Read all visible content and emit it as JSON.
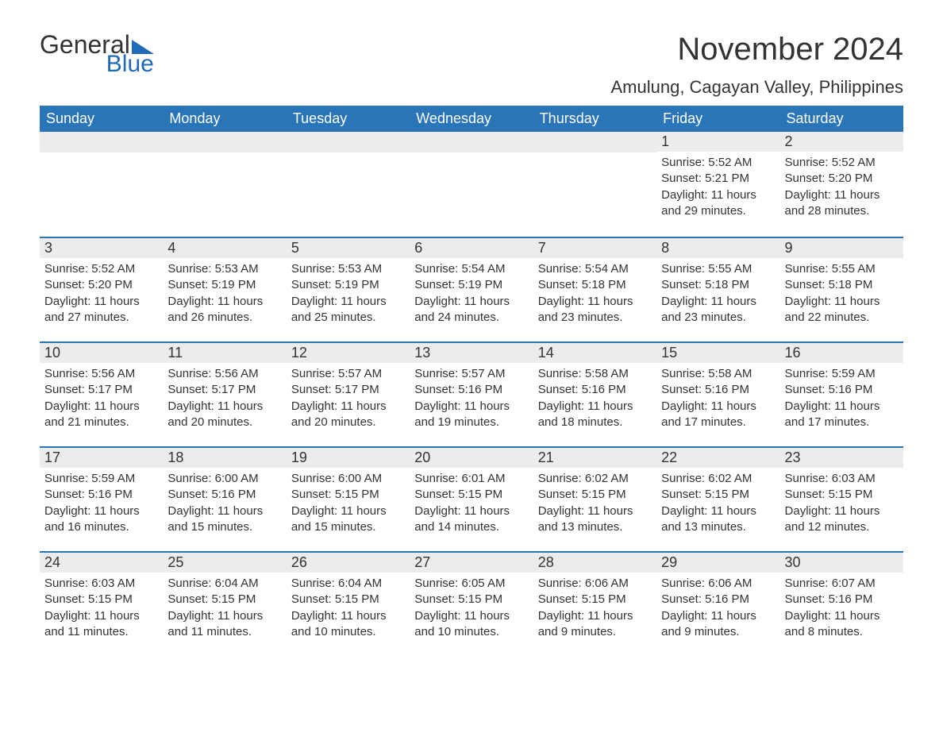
{
  "logo": {
    "general": "General",
    "blue": "Blue"
  },
  "title": "November 2024",
  "location": "Amulung, Cagayan Valley, Philippines",
  "colors": {
    "header_bg": "#2a74b8",
    "header_text": "#ffffff",
    "daybar_bg": "#ececec",
    "border": "#2a74b8",
    "text": "#333333",
    "logo_blue": "#1f6bb5"
  },
  "day_headers": [
    "Sunday",
    "Monday",
    "Tuesday",
    "Wednesday",
    "Thursday",
    "Friday",
    "Saturday"
  ],
  "weeks": [
    [
      {
        "blank": true
      },
      {
        "blank": true
      },
      {
        "blank": true
      },
      {
        "blank": true
      },
      {
        "blank": true
      },
      {
        "n": "1",
        "sunrise": "Sunrise: 5:52 AM",
        "sunset": "Sunset: 5:21 PM",
        "day1": "Daylight: 11 hours",
        "day2": "and 29 minutes."
      },
      {
        "n": "2",
        "sunrise": "Sunrise: 5:52 AM",
        "sunset": "Sunset: 5:20 PM",
        "day1": "Daylight: 11 hours",
        "day2": "and 28 minutes."
      }
    ],
    [
      {
        "n": "3",
        "sunrise": "Sunrise: 5:52 AM",
        "sunset": "Sunset: 5:20 PM",
        "day1": "Daylight: 11 hours",
        "day2": "and 27 minutes."
      },
      {
        "n": "4",
        "sunrise": "Sunrise: 5:53 AM",
        "sunset": "Sunset: 5:19 PM",
        "day1": "Daylight: 11 hours",
        "day2": "and 26 minutes."
      },
      {
        "n": "5",
        "sunrise": "Sunrise: 5:53 AM",
        "sunset": "Sunset: 5:19 PM",
        "day1": "Daylight: 11 hours",
        "day2": "and 25 minutes."
      },
      {
        "n": "6",
        "sunrise": "Sunrise: 5:54 AM",
        "sunset": "Sunset: 5:19 PM",
        "day1": "Daylight: 11 hours",
        "day2": "and 24 minutes."
      },
      {
        "n": "7",
        "sunrise": "Sunrise: 5:54 AM",
        "sunset": "Sunset: 5:18 PM",
        "day1": "Daylight: 11 hours",
        "day2": "and 23 minutes."
      },
      {
        "n": "8",
        "sunrise": "Sunrise: 5:55 AM",
        "sunset": "Sunset: 5:18 PM",
        "day1": "Daylight: 11 hours",
        "day2": "and 23 minutes."
      },
      {
        "n": "9",
        "sunrise": "Sunrise: 5:55 AM",
        "sunset": "Sunset: 5:18 PM",
        "day1": "Daylight: 11 hours",
        "day2": "and 22 minutes."
      }
    ],
    [
      {
        "n": "10",
        "sunrise": "Sunrise: 5:56 AM",
        "sunset": "Sunset: 5:17 PM",
        "day1": "Daylight: 11 hours",
        "day2": "and 21 minutes."
      },
      {
        "n": "11",
        "sunrise": "Sunrise: 5:56 AM",
        "sunset": "Sunset: 5:17 PM",
        "day1": "Daylight: 11 hours",
        "day2": "and 20 minutes."
      },
      {
        "n": "12",
        "sunrise": "Sunrise: 5:57 AM",
        "sunset": "Sunset: 5:17 PM",
        "day1": "Daylight: 11 hours",
        "day2": "and 20 minutes."
      },
      {
        "n": "13",
        "sunrise": "Sunrise: 5:57 AM",
        "sunset": "Sunset: 5:16 PM",
        "day1": "Daylight: 11 hours",
        "day2": "and 19 minutes."
      },
      {
        "n": "14",
        "sunrise": "Sunrise: 5:58 AM",
        "sunset": "Sunset: 5:16 PM",
        "day1": "Daylight: 11 hours",
        "day2": "and 18 minutes."
      },
      {
        "n": "15",
        "sunrise": "Sunrise: 5:58 AM",
        "sunset": "Sunset: 5:16 PM",
        "day1": "Daylight: 11 hours",
        "day2": "and 17 minutes."
      },
      {
        "n": "16",
        "sunrise": "Sunrise: 5:59 AM",
        "sunset": "Sunset: 5:16 PM",
        "day1": "Daylight: 11 hours",
        "day2": "and 17 minutes."
      }
    ],
    [
      {
        "n": "17",
        "sunrise": "Sunrise: 5:59 AM",
        "sunset": "Sunset: 5:16 PM",
        "day1": "Daylight: 11 hours",
        "day2": "and 16 minutes."
      },
      {
        "n": "18",
        "sunrise": "Sunrise: 6:00 AM",
        "sunset": "Sunset: 5:16 PM",
        "day1": "Daylight: 11 hours",
        "day2": "and 15 minutes."
      },
      {
        "n": "19",
        "sunrise": "Sunrise: 6:00 AM",
        "sunset": "Sunset: 5:15 PM",
        "day1": "Daylight: 11 hours",
        "day2": "and 15 minutes."
      },
      {
        "n": "20",
        "sunrise": "Sunrise: 6:01 AM",
        "sunset": "Sunset: 5:15 PM",
        "day1": "Daylight: 11 hours",
        "day2": "and 14 minutes."
      },
      {
        "n": "21",
        "sunrise": "Sunrise: 6:02 AM",
        "sunset": "Sunset: 5:15 PM",
        "day1": "Daylight: 11 hours",
        "day2": "and 13 minutes."
      },
      {
        "n": "22",
        "sunrise": "Sunrise: 6:02 AM",
        "sunset": "Sunset: 5:15 PM",
        "day1": "Daylight: 11 hours",
        "day2": "and 13 minutes."
      },
      {
        "n": "23",
        "sunrise": "Sunrise: 6:03 AM",
        "sunset": "Sunset: 5:15 PM",
        "day1": "Daylight: 11 hours",
        "day2": "and 12 minutes."
      }
    ],
    [
      {
        "n": "24",
        "sunrise": "Sunrise: 6:03 AM",
        "sunset": "Sunset: 5:15 PM",
        "day1": "Daylight: 11 hours",
        "day2": "and 11 minutes."
      },
      {
        "n": "25",
        "sunrise": "Sunrise: 6:04 AM",
        "sunset": "Sunset: 5:15 PM",
        "day1": "Daylight: 11 hours",
        "day2": "and 11 minutes."
      },
      {
        "n": "26",
        "sunrise": "Sunrise: 6:04 AM",
        "sunset": "Sunset: 5:15 PM",
        "day1": "Daylight: 11 hours",
        "day2": "and 10 minutes."
      },
      {
        "n": "27",
        "sunrise": "Sunrise: 6:05 AM",
        "sunset": "Sunset: 5:15 PM",
        "day1": "Daylight: 11 hours",
        "day2": "and 10 minutes."
      },
      {
        "n": "28",
        "sunrise": "Sunrise: 6:06 AM",
        "sunset": "Sunset: 5:15 PM",
        "day1": "Daylight: 11 hours",
        "day2": "and 9 minutes."
      },
      {
        "n": "29",
        "sunrise": "Sunrise: 6:06 AM",
        "sunset": "Sunset: 5:16 PM",
        "day1": "Daylight: 11 hours",
        "day2": "and 9 minutes."
      },
      {
        "n": "30",
        "sunrise": "Sunrise: 6:07 AM",
        "sunset": "Sunset: 5:16 PM",
        "day1": "Daylight: 11 hours",
        "day2": "and 8 minutes."
      }
    ]
  ]
}
